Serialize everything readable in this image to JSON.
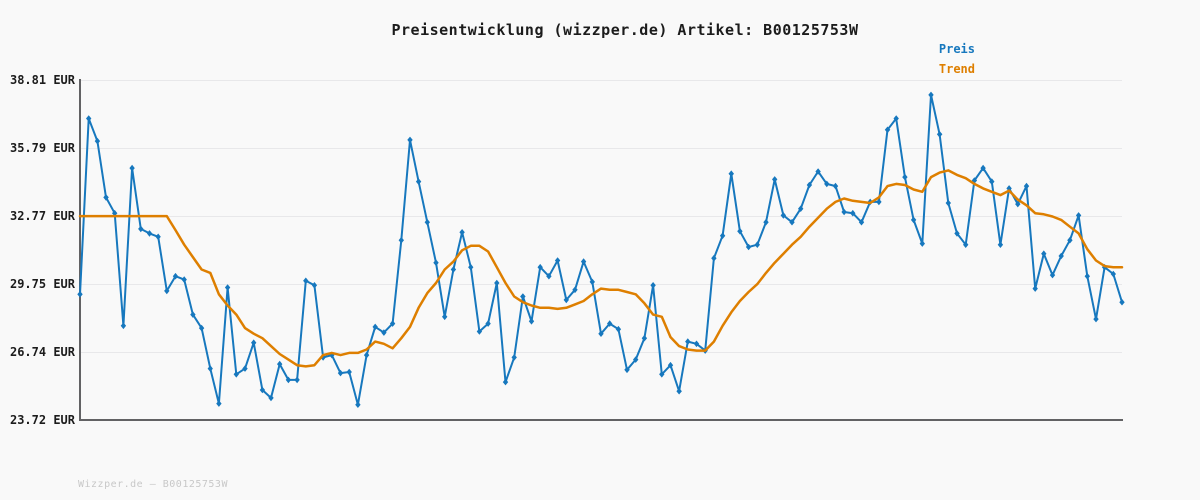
{
  "title": "Preisentwicklung (wizzper.de) Artikel: B00125753W",
  "legend": {
    "preis_label": "Preis",
    "trend_label": "Trend"
  },
  "footer_text": "Wizzper.de – B00125753W",
  "colors": {
    "preis_line": "#1778be",
    "trend_line": "#de7f00",
    "grid": "#e8e8ea",
    "axis": "#626264",
    "title_text": "#1c1c1c",
    "tick_text": "#1c1c1c",
    "footer_text": "#c8c8c8",
    "background": "#f9f9f9"
  },
  "chart_data": {
    "type": "line",
    "title": "Preisentwicklung (wizzper.de) Artikel: B00125753W",
    "xlabel": "",
    "ylabel": "",
    "x_axis": {
      "tick_labels_visible": false,
      "note": "time axis, no tick labels shown"
    },
    "ylim": [
      23.72,
      38.81
    ],
    "grid": "horizontal-only",
    "legend_position": "top-right",
    "y_ticks": [
      {
        "label": "38.81 EUR",
        "value": 38.81
      },
      {
        "label": "35.79 EUR",
        "value": 35.79
      },
      {
        "label": "32.77 EUR",
        "value": 32.77
      },
      {
        "label": "29.75 EUR",
        "value": 29.75
      },
      {
        "label": "26.74 EUR",
        "value": 26.74
      },
      {
        "label": "23.72 EUR",
        "value": 23.72
      }
    ],
    "series": [
      {
        "name": "Preis",
        "color": "#1778be",
        "markers": true,
        "line_width": 2,
        "values": [
          29.3,
          37.1,
          36.1,
          33.6,
          32.9,
          27.9,
          34.9,
          32.2,
          32.0,
          31.85,
          29.45,
          30.1,
          29.95,
          28.4,
          27.8,
          26.0,
          24.45,
          29.6,
          25.75,
          26.0,
          27.15,
          25.05,
          24.7,
          26.2,
          25.5,
          25.5,
          29.9,
          29.7,
          26.5,
          26.6,
          25.8,
          25.85,
          24.4,
          26.6,
          27.85,
          27.6,
          28.0,
          31.7,
          36.15,
          34.3,
          32.5,
          30.7,
          28.3,
          30.4,
          32.05,
          30.5,
          27.65,
          28.0,
          29.8,
          25.4,
          26.5,
          29.2,
          28.1,
          30.5,
          30.1,
          30.8,
          29.05,
          29.5,
          30.75,
          29.85,
          27.55,
          28.0,
          27.75,
          25.95,
          26.4,
          27.35,
          29.7,
          25.75,
          26.15,
          25.0,
          27.2,
          27.1,
          26.8,
          30.9,
          31.9,
          34.65,
          32.1,
          31.4,
          31.5,
          32.5,
          34.4,
          32.8,
          32.5,
          33.1,
          34.15,
          34.75,
          34.2,
          34.1,
          32.95,
          32.9,
          32.5,
          33.4,
          33.4,
          36.6,
          37.1,
          34.5,
          32.6,
          31.55,
          38.15,
          36.4,
          33.35,
          32.0,
          31.5,
          34.35,
          34.9,
          34.3,
          31.5,
          34.0,
          33.3,
          34.1,
          29.55,
          31.1,
          30.15,
          31.0,
          31.7,
          32.8,
          30.1,
          28.2,
          30.5,
          30.2,
          28.95
        ]
      },
      {
        "name": "Trend",
        "color": "#de7f00",
        "markers": false,
        "line_width": 2.5,
        "values": [
          32.77,
          32.77,
          32.77,
          32.77,
          32.77,
          32.77,
          32.77,
          32.77,
          32.77,
          32.77,
          32.77,
          32.15,
          31.5,
          30.95,
          30.4,
          30.25,
          29.3,
          28.8,
          28.4,
          27.8,
          27.55,
          27.35,
          27.0,
          26.65,
          26.4,
          26.15,
          26.1,
          26.15,
          26.6,
          26.7,
          26.6,
          26.7,
          26.7,
          26.85,
          27.2,
          27.1,
          26.9,
          27.35,
          27.85,
          28.7,
          29.35,
          29.8,
          30.4,
          30.75,
          31.25,
          31.45,
          31.45,
          31.2,
          30.5,
          29.8,
          29.2,
          28.95,
          28.8,
          28.7,
          28.7,
          28.65,
          28.7,
          28.85,
          29.0,
          29.3,
          29.55,
          29.5,
          29.5,
          29.4,
          29.3,
          28.9,
          28.4,
          28.3,
          27.4,
          27.0,
          26.85,
          26.8,
          26.8,
          27.2,
          27.9,
          28.5,
          29.0,
          29.4,
          29.75,
          30.25,
          30.7,
          31.1,
          31.5,
          31.85,
          32.3,
          32.7,
          33.1,
          33.4,
          33.55,
          33.45,
          33.4,
          33.35,
          33.6,
          34.1,
          34.2,
          34.15,
          33.95,
          33.85,
          34.5,
          34.7,
          34.8,
          34.6,
          34.45,
          34.2,
          34.0,
          33.85,
          33.7,
          33.9,
          33.5,
          33.25,
          32.9,
          32.85,
          32.75,
          32.6,
          32.3,
          32.0,
          31.3,
          30.8,
          30.55,
          30.5,
          30.5
        ]
      }
    ]
  }
}
